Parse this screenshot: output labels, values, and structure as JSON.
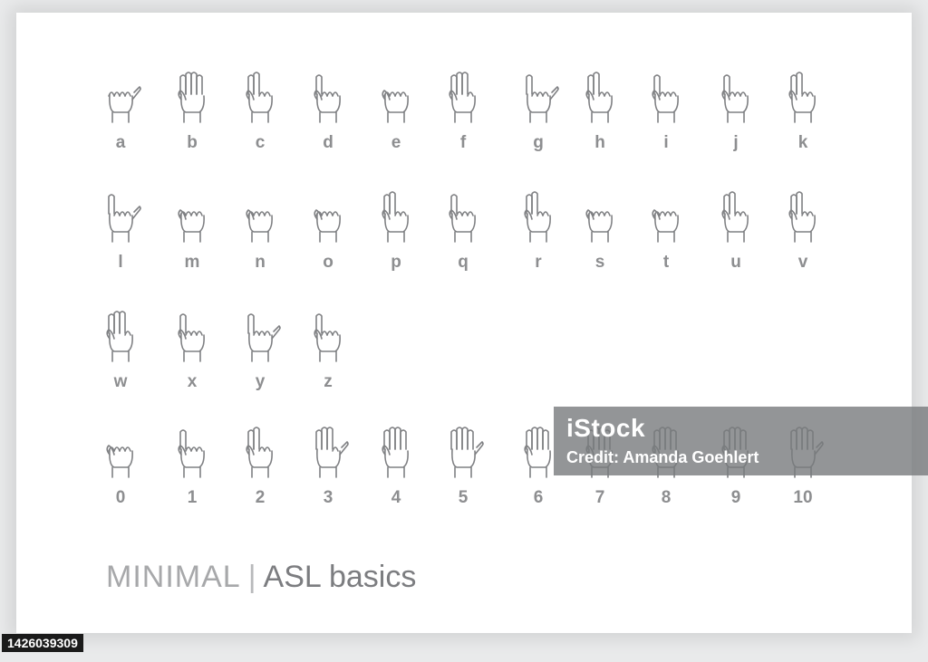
{
  "letters": [
    "a",
    "b",
    "c",
    "d",
    "e",
    "f",
    "g",
    "h",
    "i",
    "j",
    "k",
    "l",
    "m",
    "n",
    "o",
    "p",
    "q",
    "r",
    "s",
    "t",
    "u",
    "v",
    "w",
    "x",
    "y",
    "z"
  ],
  "numbers": [
    "0",
    "1",
    "2",
    "3",
    "4",
    "5",
    "6",
    "7",
    "8",
    "9",
    "10"
  ],
  "title": {
    "light": "MINIMAL",
    "separator": "|",
    "bold": "ASL basics"
  },
  "watermark": {
    "brand": "iStock",
    "credit": "Credit: Amanda Goehlert"
  },
  "stock_id": "1426039309",
  "colors": {
    "line": "#7f8083",
    "label": "#8d8e90",
    "background": "#ffffff"
  }
}
